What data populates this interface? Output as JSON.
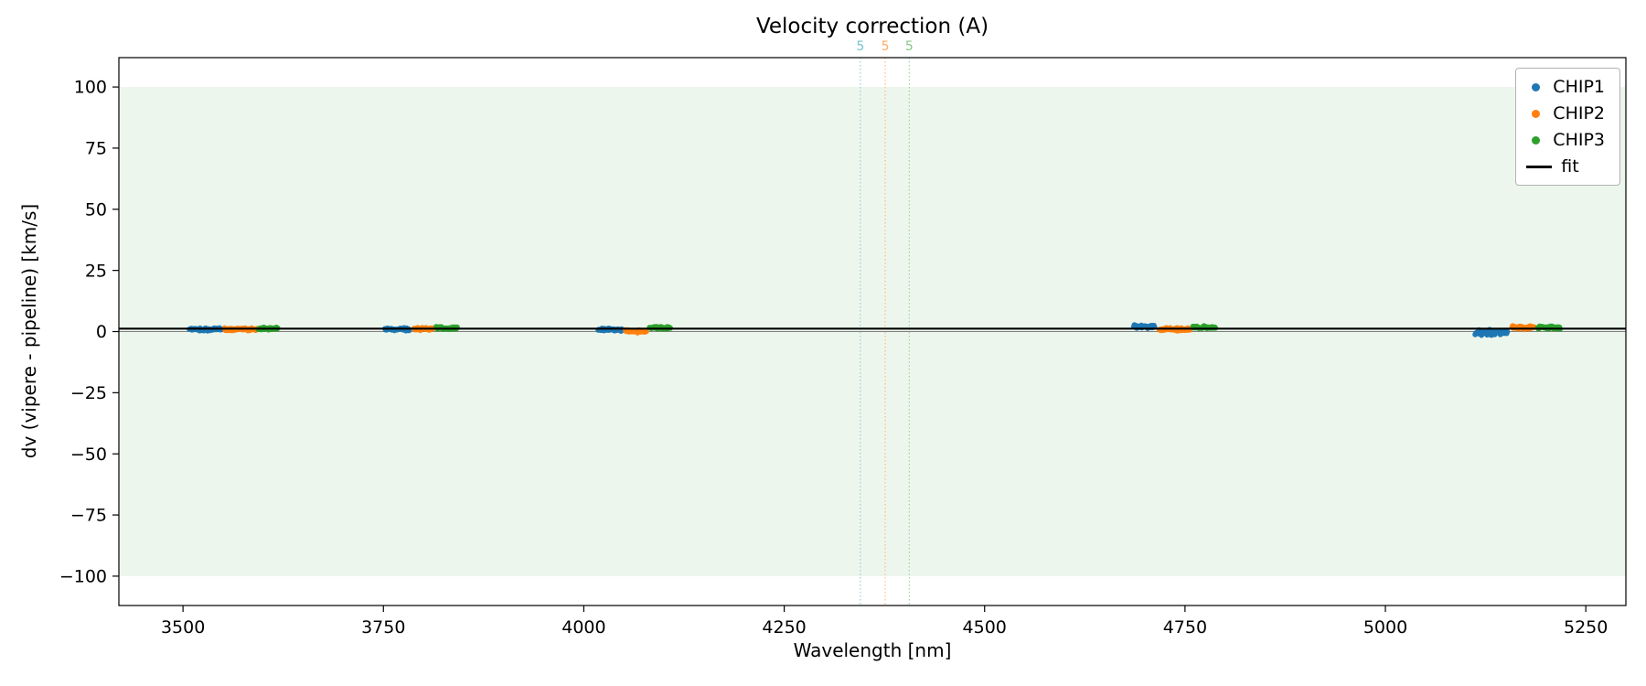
{
  "chart_data": {
    "type": "scatter",
    "title": "Velocity correction (A)",
    "xlabel": "Wavelength [nm]",
    "ylabel": "dv (vipere - pipeline) [km/s]",
    "xlim": [
      3420,
      5300
    ],
    "ylim": [
      -112,
      112
    ],
    "xticks": [
      3500,
      3750,
      4000,
      4250,
      4500,
      4750,
      5000,
      5250
    ],
    "yticks": [
      -100,
      -75,
      -50,
      -25,
      0,
      25,
      50,
      75,
      100
    ],
    "grid": false,
    "legend_position": "upper right",
    "shaded_band": {
      "ymin": -100,
      "ymax": 100,
      "color": "#edf6ed"
    },
    "zero_line": {
      "y": 0,
      "color": "#808080"
    },
    "fit_line": {
      "y": 1.2,
      "color": "#000000",
      "label": "fit"
    },
    "vlines": [
      {
        "x": 4345,
        "label": "5",
        "color": "#74c3ce"
      },
      {
        "x": 4376,
        "label": "5",
        "color": "#ffab60"
      },
      {
        "x": 4406,
        "label": "5",
        "color": "#86c986"
      }
    ],
    "legend": [
      {
        "label": "CHIP1",
        "marker": "dot",
        "color": "#1f77b4"
      },
      {
        "label": "CHIP2",
        "marker": "dot",
        "color": "#ff7f0e"
      },
      {
        "label": "CHIP3",
        "marker": "dot",
        "color": "#2ca02c"
      },
      {
        "label": "fit",
        "marker": "line",
        "color": "#000000"
      }
    ],
    "series": [
      {
        "name": "CHIP1",
        "color": "#1f77b4",
        "clusters": [
          {
            "x_start": 3508,
            "x_end": 3548,
            "y": 0.9,
            "spread": 0.7
          },
          {
            "x_start": 3752,
            "x_end": 3782,
            "y": 0.9,
            "spread": 0.7
          },
          {
            "x_start": 4018,
            "x_end": 4048,
            "y": 0.8,
            "spread": 0.7
          },
          {
            "x_start": 4686,
            "x_end": 4712,
            "y": 2.0,
            "spread": 0.8
          },
          {
            "x_start": 5112,
            "x_end": 5152,
            "y": -0.4,
            "spread": 1.3
          }
        ]
      },
      {
        "name": "CHIP2",
        "color": "#ff7f0e",
        "clusters": [
          {
            "x_start": 3552,
            "x_end": 3592,
            "y": 0.9,
            "spread": 0.7
          },
          {
            "x_start": 3788,
            "x_end": 3812,
            "y": 1.1,
            "spread": 0.7
          },
          {
            "x_start": 4052,
            "x_end": 4078,
            "y": 0.3,
            "spread": 0.9
          },
          {
            "x_start": 4718,
            "x_end": 4756,
            "y": 0.9,
            "spread": 0.8
          },
          {
            "x_start": 5158,
            "x_end": 5186,
            "y": 1.6,
            "spread": 0.8
          }
        ]
      },
      {
        "name": "CHIP3",
        "color": "#2ca02c",
        "clusters": [
          {
            "x_start": 3594,
            "x_end": 3618,
            "y": 1.2,
            "spread": 0.7
          },
          {
            "x_start": 3816,
            "x_end": 3842,
            "y": 1.4,
            "spread": 0.7
          },
          {
            "x_start": 4082,
            "x_end": 4108,
            "y": 1.5,
            "spread": 0.7
          },
          {
            "x_start": 4760,
            "x_end": 4788,
            "y": 1.7,
            "spread": 0.7
          },
          {
            "x_start": 5190,
            "x_end": 5218,
            "y": 1.6,
            "spread": 0.8
          }
        ]
      }
    ]
  }
}
